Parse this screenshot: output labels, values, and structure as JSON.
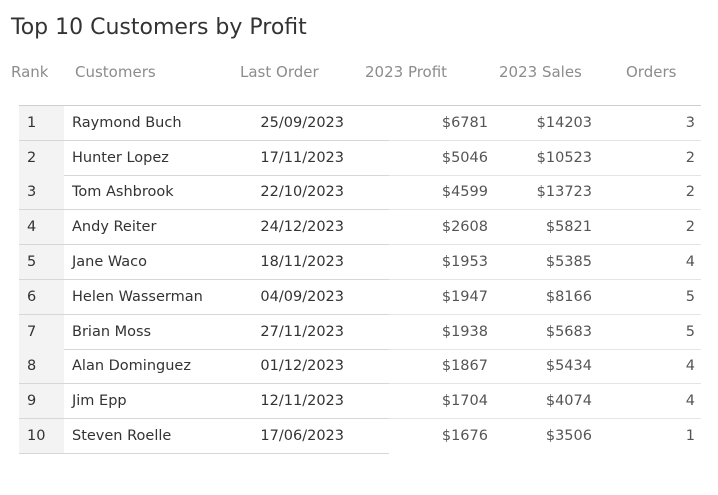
{
  "title": "Top 10 Customers by Profit",
  "columns": {
    "rank": "Rank",
    "customers": "Customers",
    "last_order": "Last Order",
    "profit": "2023 Profit",
    "sales": "2023 Sales",
    "orders": "Orders"
  },
  "rows": [
    {
      "rank": "1",
      "customer": "Raymond Buch",
      "last_order": "25/09/2023",
      "profit": "$6781",
      "sales": "$14203",
      "orders": "3"
    },
    {
      "rank": "2",
      "customer": "Hunter Lopez",
      "last_order": "17/11/2023",
      "profit": "$5046",
      "sales": "$10523",
      "orders": "2"
    },
    {
      "rank": "3",
      "customer": "Tom Ashbrook",
      "last_order": "22/10/2023",
      "profit": "$4599",
      "sales": "$13723",
      "orders": "2"
    },
    {
      "rank": "4",
      "customer": "Andy Reiter",
      "last_order": "24/12/2023",
      "profit": "$2608",
      "sales": "$5821",
      "orders": "2"
    },
    {
      "rank": "5",
      "customer": "Jane Waco",
      "last_order": "18/11/2023",
      "profit": "$1953",
      "sales": "$5385",
      "orders": "4"
    },
    {
      "rank": "6",
      "customer": "Helen Wasserman",
      "last_order": "04/09/2023",
      "profit": "$1947",
      "sales": "$8166",
      "orders": "5"
    },
    {
      "rank": "7",
      "customer": "Brian Moss",
      "last_order": "27/11/2023",
      "profit": "$1938",
      "sales": "$5683",
      "orders": "5"
    },
    {
      "rank": "8",
      "customer": "Alan Dominguez",
      "last_order": "01/12/2023",
      "profit": "$1867",
      "sales": "$5434",
      "orders": "4"
    },
    {
      "rank": "9",
      "customer": "Jim Epp",
      "last_order": "12/11/2023",
      "profit": "$1704",
      "sales": "$4074",
      "orders": "4"
    },
    {
      "rank": "10",
      "customer": "Steven Roelle",
      "last_order": "17/06/2023",
      "profit": "$1676",
      "sales": "$3506",
      "orders": "1"
    }
  ]
}
